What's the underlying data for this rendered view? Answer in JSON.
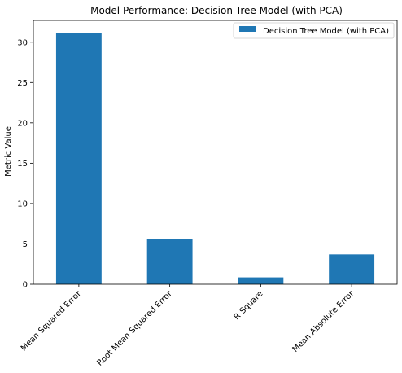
{
  "chart_data": {
    "type": "bar",
    "title": "Model Performance: Decision Tree Model (with PCA)",
    "xlabel": "",
    "ylabel": "Metric Value",
    "categories": [
      "Mean Squared Error",
      "Root Mean Squared Error",
      "R Square",
      "Mean Absolute Error"
    ],
    "series": [
      {
        "name": "Decision Tree Model (with PCA)",
        "values": [
          31.1,
          5.6,
          0.85,
          3.7
        ],
        "color": "#1f77b4"
      }
    ],
    "ylim": [
      0,
      32.7
    ],
    "yticks": [
      0,
      5,
      10,
      15,
      20,
      25,
      30
    ],
    "grid": false,
    "legend": "top-right"
  }
}
